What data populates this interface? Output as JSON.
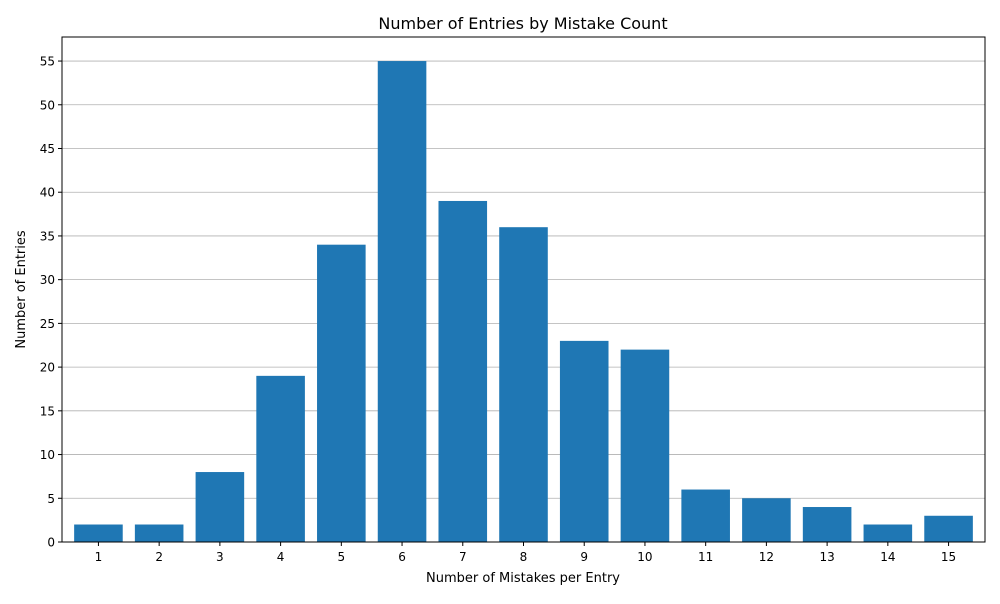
{
  "chart_data": {
    "type": "bar",
    "title": "Number of Entries by Mistake Count",
    "xlabel": "Number of Mistakes per Entry",
    "ylabel": "Number of Entries",
    "categories": [
      "1",
      "2",
      "3",
      "4",
      "5",
      "6",
      "7",
      "8",
      "9",
      "10",
      "11",
      "12",
      "13",
      "14",
      "15"
    ],
    "values": [
      2,
      2,
      8,
      19,
      34,
      55,
      39,
      36,
      23,
      22,
      6,
      5,
      4,
      2,
      3
    ],
    "yticks": [
      "0",
      "5",
      "10",
      "15",
      "20",
      "25",
      "30",
      "35",
      "40",
      "45",
      "50",
      "55"
    ],
    "ylim": [
      0,
      57.75
    ],
    "grid": "y-major",
    "bar_color": "#1f77b4",
    "grid_color": "#b0b0b0"
  }
}
